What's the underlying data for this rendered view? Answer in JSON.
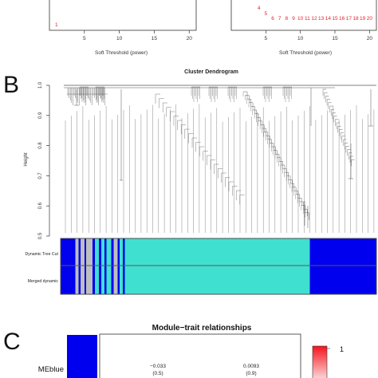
{
  "panelA": {
    "left": {
      "xlabel": "Soft Threshold (power)",
      "ticks": [
        "5",
        "10",
        "15",
        "20"
      ],
      "points": [
        {
          "label": "1"
        }
      ]
    },
    "right": {
      "xlabel": "Soft Threshold (power)",
      "ticks": [
        "5",
        "10",
        "15",
        "20"
      ],
      "points": [
        {
          "label": "4"
        },
        {
          "label": "5"
        },
        {
          "label": "6"
        },
        {
          "label": "7"
        },
        {
          "label": "8"
        },
        {
          "label": "9"
        },
        {
          "label": "10"
        },
        {
          "label": "11"
        },
        {
          "label": "12"
        },
        {
          "label": "13"
        },
        {
          "label": "14"
        },
        {
          "label": "15"
        },
        {
          "label": "16"
        },
        {
          "label": "17"
        },
        {
          "label": "18"
        },
        {
          "label": "19"
        },
        {
          "label": "20"
        }
      ]
    }
  },
  "panelB": {
    "letter": "B",
    "title": "Cluster Dendrogram",
    "ylabel": "Height",
    "yticks": [
      "0.5",
      "0.6",
      "0.7",
      "0.8",
      "0.9",
      "1.0"
    ],
    "colorbar_labels": [
      "Dynamic Tree Cut",
      "Merged dynamic"
    ]
  },
  "panelC": {
    "letter": "C",
    "title": "Module−trait relationships",
    "row_label": "MEblue",
    "cells": [
      {
        "value": "−0.033",
        "p": "(0.5)"
      },
      {
        "value": "0.0093",
        "p": "(0.9)"
      }
    ],
    "legend_max": "1"
  },
  "chart_data": [
    {
      "type": "scatter",
      "xlabel": "Soft Threshold (power)",
      "xlim": [
        0,
        21
      ],
      "x": [
        1
      ],
      "point_labels": [
        "1"
      ],
      "color": "#e8202a"
    },
    {
      "type": "scatter",
      "xlabel": "Soft Threshold (power)",
      "xlim": [
        0,
        21
      ],
      "x": [
        4,
        5,
        6,
        7,
        8,
        9,
        10,
        11,
        12,
        13,
        14,
        15,
        16,
        17,
        18,
        19,
        20
      ],
      "point_labels": [
        "4",
        "5",
        "6",
        "7",
        "8",
        "9",
        "10",
        "11",
        "12",
        "13",
        "14",
        "15",
        "16",
        "17",
        "18",
        "19",
        "20"
      ],
      "color": "#e8202a"
    },
    {
      "type": "dendrogram",
      "title": "Cluster Dendrogram",
      "ylabel": "Height",
      "ylim": [
        0.5,
        1.0
      ],
      "yticks": [
        0.5,
        0.6,
        0.7,
        0.8,
        0.9,
        1.0
      ],
      "modules": {
        "Dynamic Tree Cut": [
          "blue",
          "grey",
          "turquoise",
          "blue"
        ],
        "Merged dynamic": [
          "blue",
          "grey",
          "turquoise",
          "blue"
        ]
      },
      "colors": {
        "blue": "#0000ee",
        "grey": "#bebebe",
        "turquoise": "#40e0d0"
      }
    },
    {
      "type": "heatmap",
      "title": "Module−trait relationships",
      "rows": [
        "MEblue"
      ],
      "values": [
        [
          -0.033,
          0.0093
        ]
      ],
      "pvalues": [
        [
          "(0.5)",
          "(0.9)"
        ]
      ],
      "legend_max": 1
    }
  ]
}
